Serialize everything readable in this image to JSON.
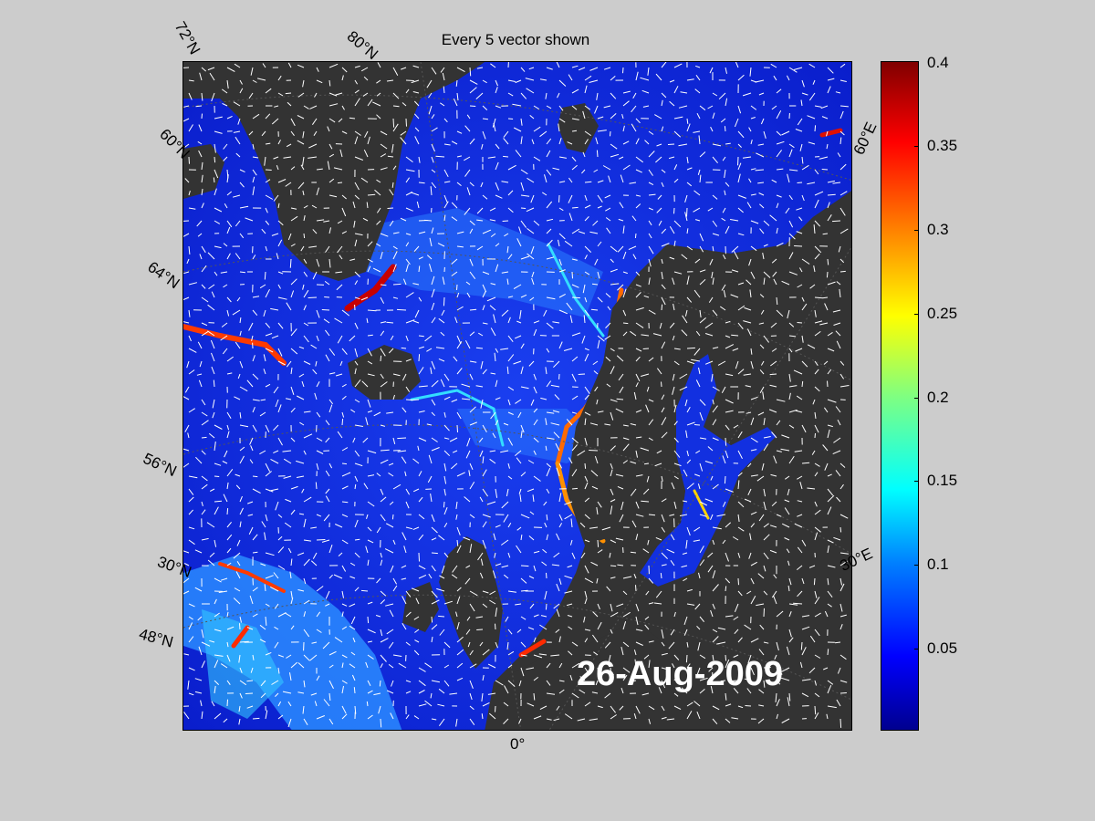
{
  "title": "Every 5 vector shown",
  "date": "26-Aug-2009",
  "lat_labels": [
    "72°N",
    "60°N",
    "64°N",
    "56°N",
    "30°N",
    "48°N"
  ],
  "lon_labels": [
    "80°N",
    "60°E",
    "30°E",
    "0°"
  ],
  "colorbar": {
    "ticks": [
      "0.4",
      "0.35",
      "0.3",
      "0.25",
      "0.2",
      "0.15",
      "0.1",
      "0.05"
    ],
    "range": [
      0,
      0.4
    ],
    "colormap": "jet"
  },
  "colors": {
    "background": "#cccccc",
    "land": "#333333",
    "vectors": "#ffffff",
    "ocean_low": "#0a1ecc"
  }
}
